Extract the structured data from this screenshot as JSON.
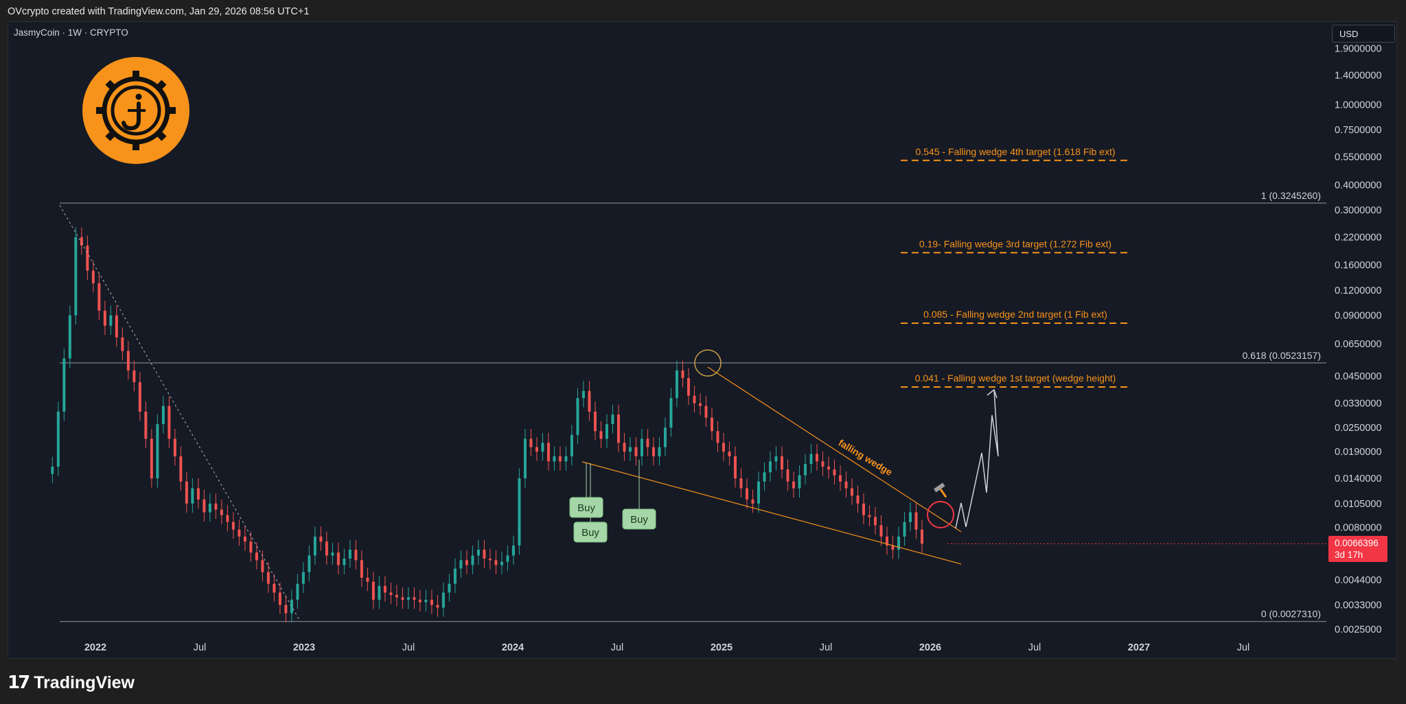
{
  "header": {
    "attribution": "OVcrypto created with TradingView.com, Jan 29, 2026 08:56 UTC+1"
  },
  "chart_header": {
    "symbol_line": "JasmyCoin · 1W · CRYPTO",
    "currency_button": "USD"
  },
  "footer": {
    "brand": "TradingView",
    "brand_mark": "17"
  },
  "colors": {
    "background": "#161a25",
    "bull": "#26a69a",
    "bear": "#ef5350",
    "accent_orange": "#f7931a",
    "fib_line": "#9598a1",
    "price_tag": "#f23645",
    "buy_badge": "#a5d6a7"
  },
  "price_tag": {
    "value": "0.0066396",
    "countdown": "3d 17h"
  },
  "annotations": {
    "targets": [
      {
        "label": "0.545 - Falling wedge 4th target (1.618 Fib ext)",
        "price": 0.545
      },
      {
        "label": "0.19- Falling wedge 3rd target (1.272 Fib ext)",
        "price": 0.19
      },
      {
        "label": "0.085 - Falling wedge 2nd target (1 Fib ext)",
        "price": 0.085
      },
      {
        "label": "0.041 - Falling wedge 1st target (wedge height)",
        "price": 0.041
      }
    ],
    "fib_levels": [
      {
        "label": "1 (0.3245260)",
        "price": 0.324526
      },
      {
        "label": "0.618 (0.0523157)",
        "price": 0.0523157
      },
      {
        "label": "0 (0.0027310)",
        "price": 0.002731
      }
    ],
    "pattern_label": "falling wedge",
    "buy_labels": [
      "Buy",
      "Buy",
      "Buy"
    ],
    "logo_icon": "jasmy-logo-icon",
    "signal_icon": "hammer-icon"
  },
  "chart_data": {
    "type": "candlestick",
    "title": "JasmyCoin · 1W · CRYPTO",
    "y_scale": "log",
    "ylim": [
      0.0023,
      2.1
    ],
    "y_ticks": [
      "1.9000000",
      "1.4000000",
      "1.0000000",
      "0.7500000",
      "0.5500000",
      "0.4000000",
      "0.3000000",
      "0.2200000",
      "0.1600000",
      "0.1200000",
      "0.0900000",
      "0.0650000",
      "0.0450000",
      "0.0330000",
      "0.0250000",
      "0.0190000",
      "0.0140000",
      "0.0105000",
      "0.0080000",
      "0.0044000",
      "0.0033000",
      "0.0025000"
    ],
    "x_ticks": [
      "2022",
      "Jul",
      "2023",
      "Jul",
      "2024",
      "Jul",
      "2025",
      "Jul",
      "2026",
      "Jul",
      "2027",
      "Jul"
    ],
    "x_range": [
      "2021-11",
      "2027-10"
    ],
    "grid": false,
    "closes": [
      {
        "t": "2021-11",
        "c": 0.016
      },
      {
        "t": "2021-11",
        "c": 0.03
      },
      {
        "t": "2021-12",
        "c": 0.055
      },
      {
        "t": "2021-12",
        "c": 0.09
      },
      {
        "t": "2021-12",
        "c": 0.22
      },
      {
        "t": "2021-12",
        "c": 0.2
      },
      {
        "t": "2022-01",
        "c": 0.15
      },
      {
        "t": "2022-01",
        "c": 0.13
      },
      {
        "t": "2022-01",
        "c": 0.095
      },
      {
        "t": "2022-02",
        "c": 0.08
      },
      {
        "t": "2022-02",
        "c": 0.09
      },
      {
        "t": "2022-02",
        "c": 0.07
      },
      {
        "t": "2022-03",
        "c": 0.06
      },
      {
        "t": "2022-03",
        "c": 0.048
      },
      {
        "t": "2022-03",
        "c": 0.042
      },
      {
        "t": "2022-04",
        "c": 0.03
      },
      {
        "t": "2022-04",
        "c": 0.022
      },
      {
        "t": "2022-04",
        "c": 0.014
      },
      {
        "t": "2022-05",
        "c": 0.026
      },
      {
        "t": "2022-05",
        "c": 0.032
      },
      {
        "t": "2022-05",
        "c": 0.022
      },
      {
        "t": "2022-06",
        "c": 0.018
      },
      {
        "t": "2022-06",
        "c": 0.0135
      },
      {
        "t": "2022-06",
        "c": 0.0105
      },
      {
        "t": "2022-07",
        "c": 0.0125
      },
      {
        "t": "2022-07",
        "c": 0.011
      },
      {
        "t": "2022-07",
        "c": 0.0095
      },
      {
        "t": "2022-08",
        "c": 0.0105
      },
      {
        "t": "2022-08",
        "c": 0.0098
      },
      {
        "t": "2022-08",
        "c": 0.0092
      },
      {
        "t": "2022-09",
        "c": 0.0085
      },
      {
        "t": "2022-09",
        "c": 0.0078
      },
      {
        "t": "2022-09",
        "c": 0.0072
      },
      {
        "t": "2022-10",
        "c": 0.0068
      },
      {
        "t": "2022-10",
        "c": 0.006
      },
      {
        "t": "2022-10",
        "c": 0.0055
      },
      {
        "t": "2022-11",
        "c": 0.0048
      },
      {
        "t": "2022-11",
        "c": 0.0042
      },
      {
        "t": "2022-11",
        "c": 0.0038
      },
      {
        "t": "2022-12",
        "c": 0.0033
      },
      {
        "t": "2022-12",
        "c": 0.003
      },
      {
        "t": "2023-01",
        "c": 0.0035
      },
      {
        "t": "2023-01",
        "c": 0.0042
      },
      {
        "t": "2023-01",
        "c": 0.0048
      },
      {
        "t": "2023-02",
        "c": 0.0058
      },
      {
        "t": "2023-02",
        "c": 0.0072
      },
      {
        "t": "2023-02",
        "c": 0.0068
      },
      {
        "t": "2023-03",
        "c": 0.0058
      },
      {
        "t": "2023-03",
        "c": 0.006
      },
      {
        "t": "2023-03",
        "c": 0.0052
      },
      {
        "t": "2023-04",
        "c": 0.0056
      },
      {
        "t": "2023-04",
        "c": 0.0062
      },
      {
        "t": "2023-04",
        "c": 0.0055
      },
      {
        "t": "2023-05",
        "c": 0.0045
      },
      {
        "t": "2023-05",
        "c": 0.0043
      },
      {
        "t": "2023-06",
        "c": 0.0035
      },
      {
        "t": "2023-06",
        "c": 0.0041
      },
      {
        "t": "2023-06",
        "c": 0.0038
      },
      {
        "t": "2023-07",
        "c": 0.0037
      },
      {
        "t": "2023-07",
        "c": 0.0036
      },
      {
        "t": "2023-07",
        "c": 0.0035
      },
      {
        "t": "2023-08",
        "c": 0.0036
      },
      {
        "t": "2023-08",
        "c": 0.0035
      },
      {
        "t": "2023-08",
        "c": 0.0034
      },
      {
        "t": "2023-09",
        "c": 0.0035
      },
      {
        "t": "2023-09",
        "c": 0.0033
      },
      {
        "t": "2023-10",
        "c": 0.0032
      },
      {
        "t": "2023-10",
        "c": 0.0038
      },
      {
        "t": "2023-10",
        "c": 0.0042
      },
      {
        "t": "2023-11",
        "c": 0.005
      },
      {
        "t": "2023-11",
        "c": 0.0055
      },
      {
        "t": "2023-11",
        "c": 0.0052
      },
      {
        "t": "2023-12",
        "c": 0.0058
      },
      {
        "t": "2023-12",
        "c": 0.0062
      },
      {
        "t": "2023-12",
        "c": 0.0056
      },
      {
        "t": "2024-01",
        "c": 0.0055
      },
      {
        "t": "2024-01",
        "c": 0.0052
      },
      {
        "t": "2024-01",
        "c": 0.0054
      },
      {
        "t": "2024-02",
        "c": 0.0058
      },
      {
        "t": "2024-02",
        "c": 0.0065
      },
      {
        "t": "2024-02",
        "c": 0.014
      },
      {
        "t": "2024-03",
        "c": 0.022
      },
      {
        "t": "2024-03",
        "c": 0.02
      },
      {
        "t": "2024-03",
        "c": 0.019
      },
      {
        "t": "2024-04",
        "c": 0.021
      },
      {
        "t": "2024-04",
        "c": 0.017
      },
      {
        "t": "2024-04",
        "c": 0.018
      },
      {
        "t": "2024-05",
        "c": 0.017
      },
      {
        "t": "2024-05",
        "c": 0.018
      },
      {
        "t": "2024-05",
        "c": 0.023
      },
      {
        "t": "2024-06",
        "c": 0.035
      },
      {
        "t": "2024-06",
        "c": 0.038
      },
      {
        "t": "2024-06",
        "c": 0.03
      },
      {
        "t": "2024-07",
        "c": 0.024
      },
      {
        "t": "2024-07",
        "c": 0.022
      },
      {
        "t": "2024-07",
        "c": 0.026
      },
      {
        "t": "2024-08",
        "c": 0.029
      },
      {
        "t": "2024-08",
        "c": 0.021
      },
      {
        "t": "2024-08",
        "c": 0.019
      },
      {
        "t": "2024-09",
        "c": 0.02
      },
      {
        "t": "2024-09",
        "c": 0.018
      },
      {
        "t": "2024-09",
        "c": 0.022
      },
      {
        "t": "2024-10",
        "c": 0.02
      },
      {
        "t": "2024-10",
        "c": 0.018
      },
      {
        "t": "2024-10",
        "c": 0.02
      },
      {
        "t": "2024-11",
        "c": 0.025
      },
      {
        "t": "2024-11",
        "c": 0.035
      },
      {
        "t": "2024-11",
        "c": 0.048
      },
      {
        "t": "2024-12",
        "c": 0.044
      },
      {
        "t": "2024-12",
        "c": 0.036
      },
      {
        "t": "2024-12",
        "c": 0.033
      },
      {
        "t": "2025-01",
        "c": 0.032
      },
      {
        "t": "2025-01",
        "c": 0.028
      },
      {
        "t": "2025-01",
        "c": 0.024
      },
      {
        "t": "2025-02",
        "c": 0.021
      },
      {
        "t": "2025-02",
        "c": 0.019
      },
      {
        "t": "2025-02",
        "c": 0.018
      },
      {
        "t": "2025-03",
        "c": 0.014
      },
      {
        "t": "2025-03",
        "c": 0.0125
      },
      {
        "t": "2025-03",
        "c": 0.011
      },
      {
        "t": "2025-04",
        "c": 0.0105
      },
      {
        "t": "2025-04",
        "c": 0.0135
      },
      {
        "t": "2025-04",
        "c": 0.015
      },
      {
        "t": "2025-05",
        "c": 0.017
      },
      {
        "t": "2025-05",
        "c": 0.018
      },
      {
        "t": "2025-05",
        "c": 0.0155
      },
      {
        "t": "2025-06",
        "c": 0.0135
      },
      {
        "t": "2025-06",
        "c": 0.0125
      },
      {
        "t": "2025-06",
        "c": 0.0145
      },
      {
        "t": "2025-07",
        "c": 0.0165
      },
      {
        "t": "2025-07",
        "c": 0.0185
      },
      {
        "t": "2025-07",
        "c": 0.017
      },
      {
        "t": "2025-08",
        "c": 0.016
      },
      {
        "t": "2025-08",
        "c": 0.0155
      },
      {
        "t": "2025-08",
        "c": 0.0145
      },
      {
        "t": "2025-09",
        "c": 0.0135
      },
      {
        "t": "2025-09",
        "c": 0.0125
      },
      {
        "t": "2025-09",
        "c": 0.0115
      },
      {
        "t": "2025-10",
        "c": 0.0105
      },
      {
        "t": "2025-10",
        "c": 0.0092
      },
      {
        "t": "2025-10",
        "c": 0.009
      },
      {
        "t": "2025-11",
        "c": 0.0082
      },
      {
        "t": "2025-11",
        "c": 0.0072
      },
      {
        "t": "2025-11",
        "c": 0.0065
      },
      {
        "t": "2025-12",
        "c": 0.0062
      },
      {
        "t": "2025-12",
        "c": 0.0072
      },
      {
        "t": "2025-12",
        "c": 0.0085
      },
      {
        "t": "2026-01",
        "c": 0.0095
      },
      {
        "t": "2026-01",
        "c": 0.0078
      },
      {
        "t": "2026-01",
        "c": 0.0066396
      }
    ]
  }
}
